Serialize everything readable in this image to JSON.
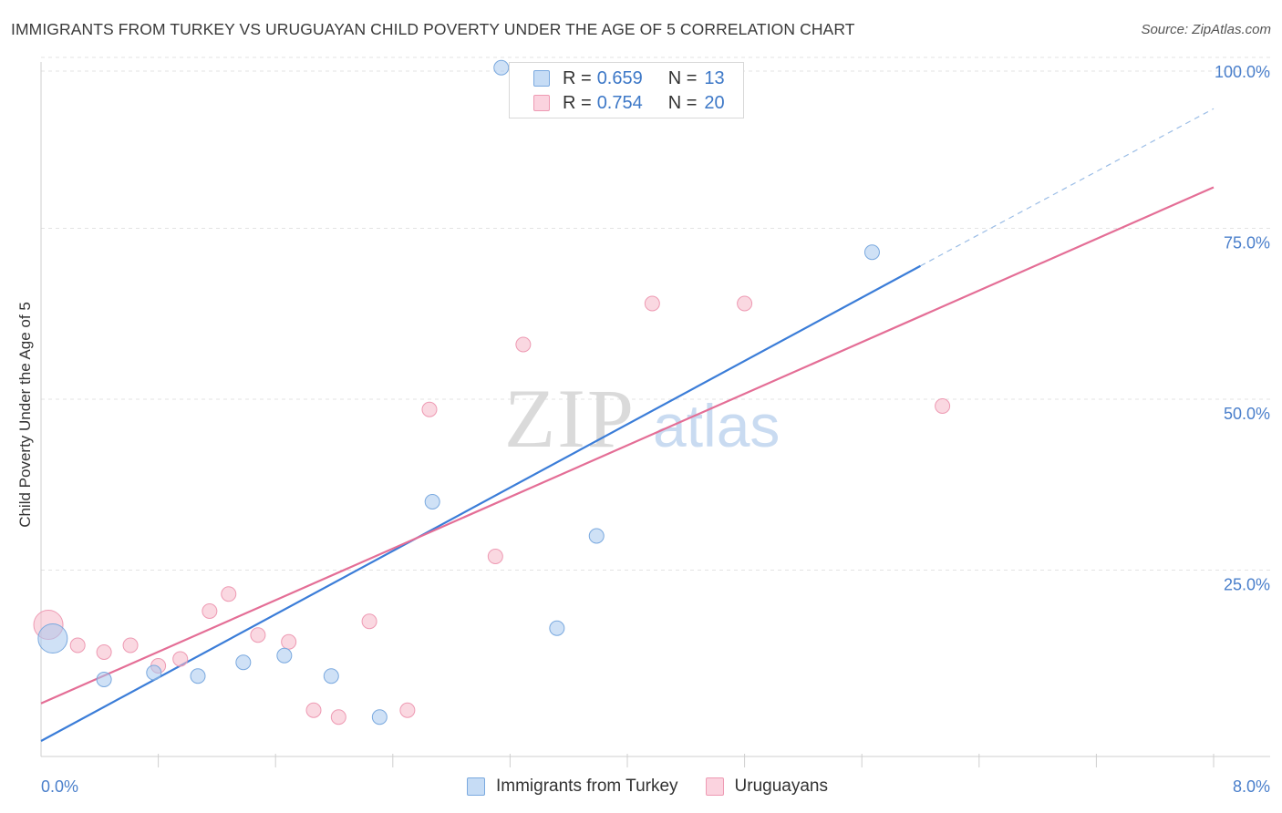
{
  "title": "IMMIGRANTS FROM TURKEY VS URUGUAYAN CHILD POVERTY UNDER THE AGE OF 5 CORRELATION CHART",
  "source": "Source: ZipAtlas.com",
  "watermark": {
    "zip": "ZIP",
    "atlas": "atlas"
  },
  "legend": {
    "rows": [
      {
        "r_label": "R =",
        "r_value": "0.659",
        "n_label": "N =",
        "n_value": "13",
        "color": "#a8c8ee"
      },
      {
        "r_label": "R =",
        "r_value": "0.754",
        "n_label": "N =",
        "n_value": "20",
        "color": "#f6b8c9"
      }
    ]
  },
  "bottom_legend": {
    "items": [
      {
        "label": "Immigrants from Turkey",
        "color": "#a8c8ee"
      },
      {
        "label": "Uruguayans",
        "color": "#f6b8c9"
      }
    ]
  },
  "chart_data": {
    "type": "scatter",
    "title": "IMMIGRANTS FROM TURKEY VS URUGUAYAN CHILD POVERTY UNDER THE AGE OF 5 CORRELATION CHART",
    "xlabel": "",
    "ylabel": "Child Poverty Under the Age of 5",
    "xlim": [
      0,
      8
    ],
    "ylim": [
      0,
      100
    ],
    "x_tick_labels": {
      "left": "0.0%",
      "right": "8.0%"
    },
    "y_ticks": [
      25,
      50,
      75,
      100
    ],
    "y_tick_labels": [
      "25.0%",
      "50.0%",
      "75.0%",
      "100.0%"
    ],
    "grid": true,
    "colors": {
      "blue": "#3b7dd8",
      "pink": "#e46e96",
      "axis_label": "#4a7fcb"
    },
    "series": [
      {
        "name": "Immigrants from Turkey",
        "color": "#a8c8ee",
        "stroke": "#7aa9df",
        "points": [
          {
            "x": 0.08,
            "y": 15.0,
            "big": true
          },
          {
            "x": 0.43,
            "y": 9.0
          },
          {
            "x": 0.77,
            "y": 10.0
          },
          {
            "x": 1.07,
            "y": 9.5
          },
          {
            "x": 1.38,
            "y": 11.5
          },
          {
            "x": 1.66,
            "y": 12.5
          },
          {
            "x": 1.98,
            "y": 9.5
          },
          {
            "x": 2.31,
            "y": 3.5
          },
          {
            "x": 2.67,
            "y": 35.0
          },
          {
            "x": 3.14,
            "y": 98.5
          },
          {
            "x": 3.52,
            "y": 16.5
          },
          {
            "x": 3.79,
            "y": 30.0
          },
          {
            "x": 5.67,
            "y": 71.5
          }
        ],
        "trend": {
          "x1": 0,
          "y1": 0,
          "x2": 6.0,
          "y2": 69.5,
          "dash_to_x": 8.0,
          "dash_to_y": 92.5
        }
      },
      {
        "name": "Uruguayans",
        "color": "#f6b8c9",
        "stroke": "#ee9ab3",
        "points": [
          {
            "x": 0.05,
            "y": 17.0,
            "big": true
          },
          {
            "x": 0.25,
            "y": 14.0
          },
          {
            "x": 0.43,
            "y": 13.0
          },
          {
            "x": 0.61,
            "y": 14.0
          },
          {
            "x": 0.8,
            "y": 11.0
          },
          {
            "x": 0.95,
            "y": 12.0
          },
          {
            "x": 1.15,
            "y": 19.0
          },
          {
            "x": 1.28,
            "y": 21.5
          },
          {
            "x": 1.48,
            "y": 15.5
          },
          {
            "x": 1.69,
            "y": 14.5
          },
          {
            "x": 1.86,
            "y": 4.5
          },
          {
            "x": 2.03,
            "y": 3.5
          },
          {
            "x": 2.24,
            "y": 17.5
          },
          {
            "x": 2.5,
            "y": 4.5
          },
          {
            "x": 2.65,
            "y": 48.5
          },
          {
            "x": 3.1,
            "y": 27.0
          },
          {
            "x": 3.29,
            "y": 58.0
          },
          {
            "x": 4.17,
            "y": 64.0
          },
          {
            "x": 4.8,
            "y": 64.0
          },
          {
            "x": 6.15,
            "y": 49.0
          }
        ],
        "trend": {
          "x1": 0,
          "y1": 5.5,
          "x2": 8.0,
          "y2": 81.0
        }
      }
    ]
  }
}
